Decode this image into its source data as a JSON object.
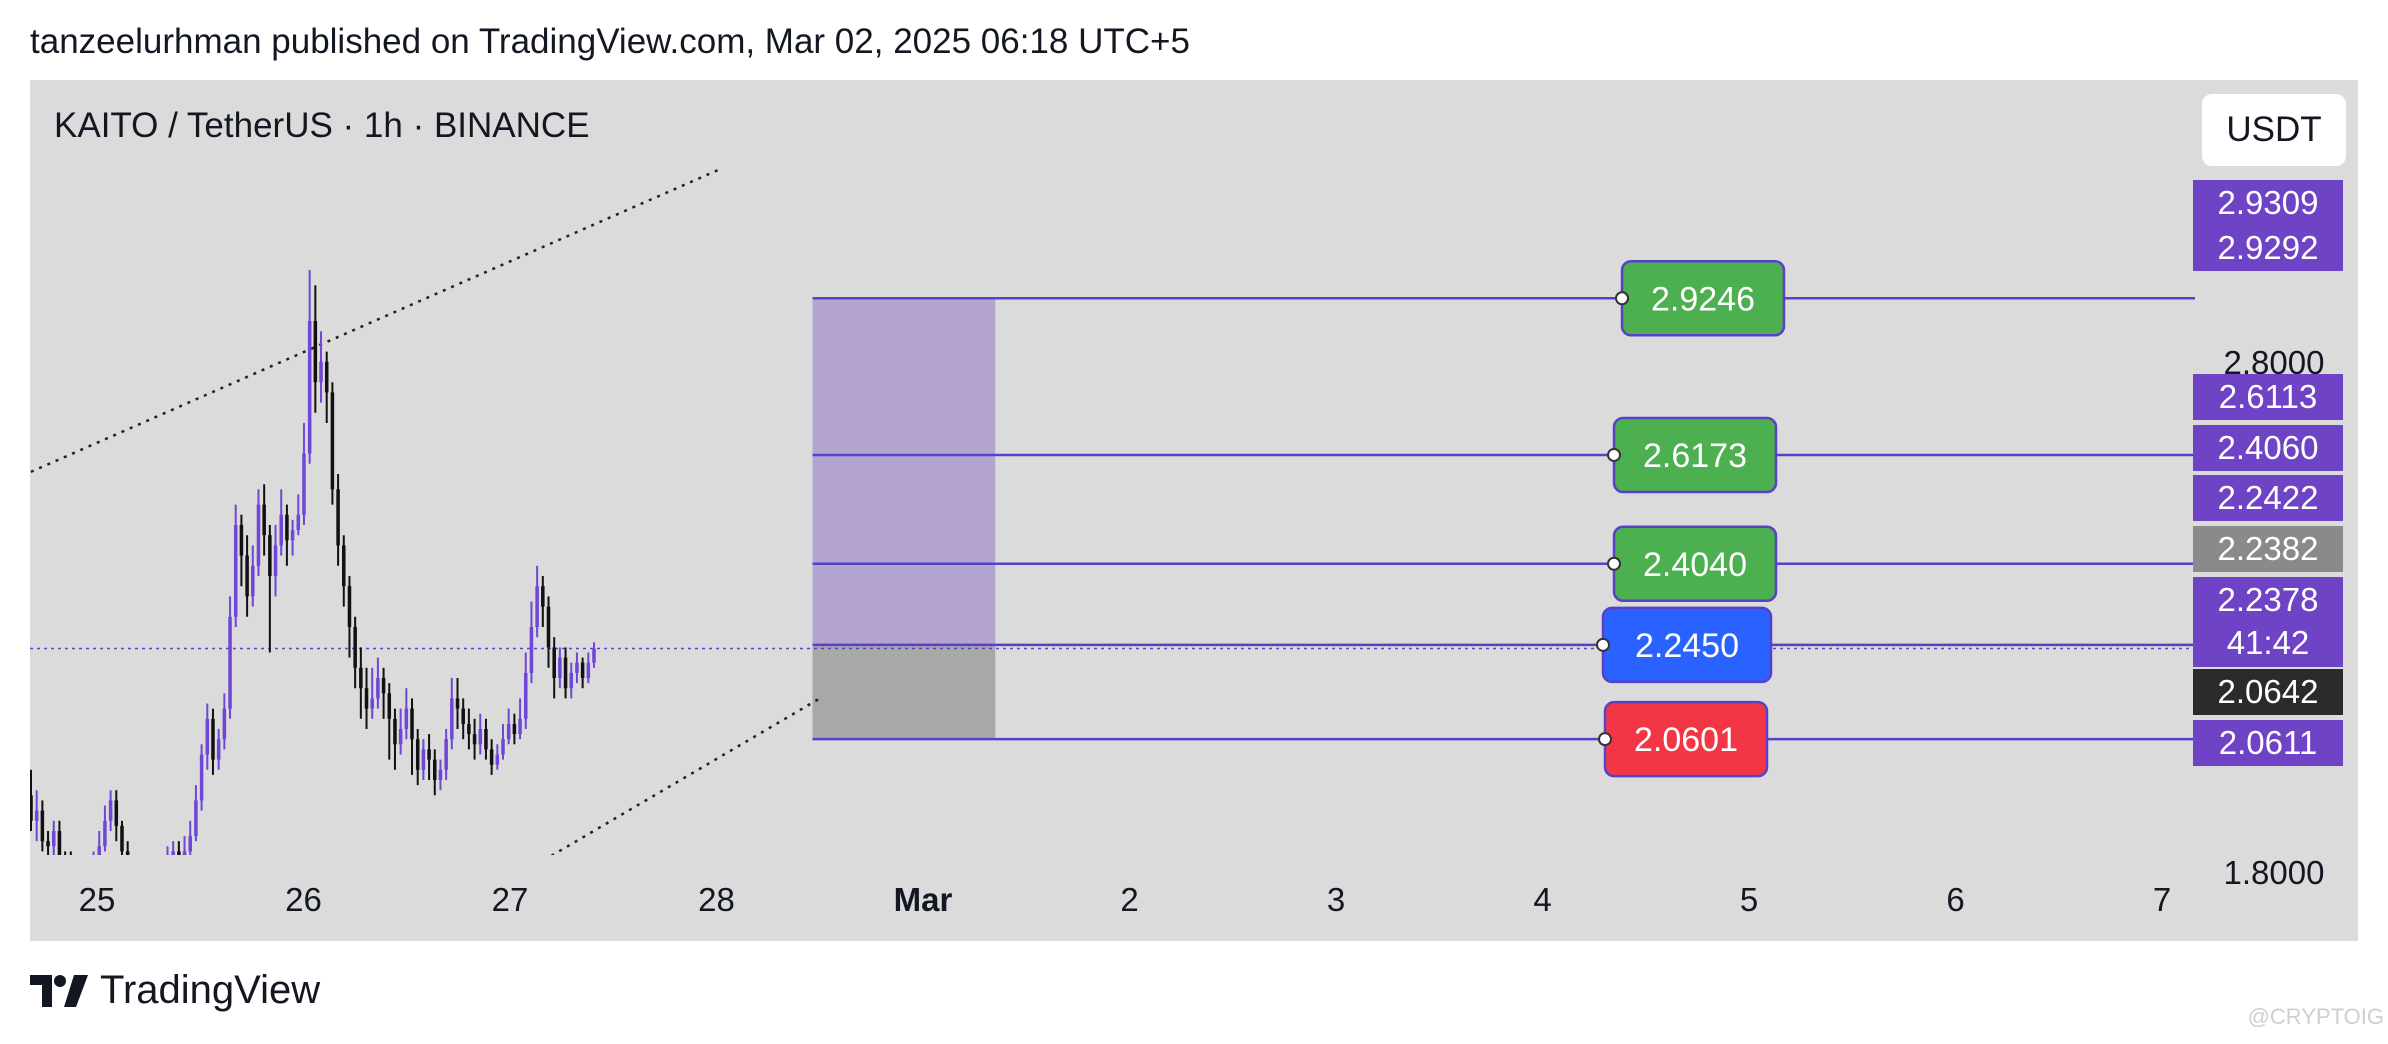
{
  "header": {
    "text": "tanzeelurhman published on TradingView.com, Mar 02, 2025 06:18 UTC+5"
  },
  "chart_header": {
    "symbol": "KAITO / TetherUS · 1h · BINANCE",
    "unit_button": "USDT"
  },
  "footer": {
    "brand": "TradingView",
    "watermark": "@CRYPTOIG"
  },
  "colors": {
    "panel": "#dbdbdb",
    "bull": "#7046d8",
    "bear": "#111111",
    "tp": "#4caf50",
    "entry": "#2962ff",
    "stop": "#f23645",
    "line": "#5940c8",
    "zone_profit": "#b3a4d0",
    "zone_loss": "#a8a8a8",
    "price_badge": "#6e43c6"
  },
  "chart_data": {
    "type": "candlestick",
    "x_ticks": [
      "25",
      "26",
      "27",
      "28",
      "Mar",
      "2",
      "3",
      "4",
      "5",
      "6",
      "7"
    ],
    "y_ticks": [
      "2.8000",
      "1.8000"
    ],
    "ylim": [
      1.73,
      3.18
    ],
    "candles": [
      [
        1.95,
        1.9,
        2.0,
        1.88
      ],
      [
        1.9,
        1.92,
        1.96,
        1.86
      ],
      [
        1.92,
        1.86,
        1.94,
        1.84
      ],
      [
        1.86,
        1.85,
        1.88,
        1.8
      ],
      [
        1.85,
        1.88,
        1.9,
        1.82
      ],
      [
        1.88,
        1.83,
        1.9,
        1.8
      ],
      [
        1.83,
        1.82,
        1.84,
        1.78
      ],
      [
        1.82,
        1.8,
        1.84,
        1.76
      ],
      [
        1.8,
        1.79,
        1.82,
        1.76
      ],
      [
        1.79,
        1.78,
        1.8,
        1.74
      ],
      [
        1.78,
        1.79,
        1.81,
        1.76
      ],
      [
        1.79,
        1.82,
        1.84,
        1.78
      ],
      [
        1.82,
        1.85,
        1.88,
        1.8
      ],
      [
        1.85,
        1.9,
        1.93,
        1.84
      ],
      [
        1.9,
        1.94,
        1.96,
        1.88
      ],
      [
        1.94,
        1.89,
        1.96,
        1.86
      ],
      [
        1.89,
        1.84,
        1.9,
        1.82
      ],
      [
        1.84,
        1.8,
        1.86,
        1.78
      ],
      [
        1.8,
        1.79,
        1.82,
        1.76
      ],
      [
        1.79,
        1.78,
        1.8,
        1.74
      ],
      [
        1.78,
        1.77,
        1.79,
        1.74
      ],
      [
        1.77,
        1.78,
        1.8,
        1.75
      ],
      [
        1.78,
        1.77,
        1.79,
        1.74
      ],
      [
        1.77,
        1.79,
        1.81,
        1.75
      ],
      [
        1.79,
        1.82,
        1.85,
        1.78
      ],
      [
        1.82,
        1.84,
        1.86,
        1.8
      ],
      [
        1.84,
        1.81,
        1.86,
        1.79
      ],
      [
        1.81,
        1.84,
        1.87,
        1.8
      ],
      [
        1.84,
        1.87,
        1.9,
        1.83
      ],
      [
        1.87,
        1.94,
        1.97,
        1.86
      ],
      [
        1.94,
        2.03,
        2.05,
        1.92
      ],
      [
        2.03,
        2.1,
        2.13,
        2.0
      ],
      [
        2.1,
        2.02,
        2.12,
        1.99
      ],
      [
        2.02,
        2.06,
        2.08,
        2.0
      ],
      [
        2.06,
        2.12,
        2.15,
        2.04
      ],
      [
        2.12,
        2.3,
        2.34,
        2.1
      ],
      [
        2.3,
        2.48,
        2.52,
        2.28
      ],
      [
        2.48,
        2.42,
        2.5,
        2.36
      ],
      [
        2.42,
        2.34,
        2.46,
        2.3
      ],
      [
        2.34,
        2.4,
        2.44,
        2.32
      ],
      [
        2.4,
        2.52,
        2.55,
        2.38
      ],
      [
        2.52,
        2.46,
        2.56,
        2.42
      ],
      [
        2.46,
        2.38,
        2.48,
        2.23
      ],
      [
        2.38,
        2.44,
        2.48,
        2.34
      ],
      [
        2.44,
        2.5,
        2.55,
        2.42
      ],
      [
        2.5,
        2.45,
        2.52,
        2.4
      ],
      [
        2.45,
        2.47,
        2.49,
        2.42
      ],
      [
        2.47,
        2.5,
        2.54,
        2.46
      ],
      [
        2.5,
        2.62,
        2.68,
        2.48
      ],
      [
        2.62,
        2.88,
        2.98,
        2.6
      ],
      [
        2.88,
        2.76,
        2.95,
        2.7
      ],
      [
        2.76,
        2.8,
        2.86,
        2.72
      ],
      [
        2.8,
        2.74,
        2.82,
        2.68
      ],
      [
        2.74,
        2.55,
        2.76,
        2.52
      ],
      [
        2.55,
        2.44,
        2.58,
        2.4
      ],
      [
        2.44,
        2.36,
        2.46,
        2.32
      ],
      [
        2.36,
        2.28,
        2.38,
        2.22
      ],
      [
        2.28,
        2.2,
        2.3,
        2.16
      ],
      [
        2.2,
        2.16,
        2.24,
        2.1
      ],
      [
        2.16,
        2.12,
        2.2,
        2.08
      ],
      [
        2.12,
        2.14,
        2.2,
        2.1
      ],
      [
        2.14,
        2.18,
        2.22,
        2.12
      ],
      [
        2.18,
        2.15,
        2.2,
        2.1
      ],
      [
        2.15,
        2.1,
        2.17,
        2.02
      ],
      [
        2.1,
        2.05,
        2.12,
        2.0
      ],
      [
        2.05,
        2.08,
        2.12,
        2.03
      ],
      [
        2.08,
        2.12,
        2.16,
        2.06
      ],
      [
        2.12,
        2.06,
        2.14,
        1.99
      ],
      [
        2.06,
        2.0,
        2.08,
        1.97
      ],
      [
        2.0,
        2.04,
        2.06,
        1.98
      ],
      [
        2.04,
        2.02,
        2.07,
        1.98
      ],
      [
        2.02,
        1.98,
        2.04,
        1.95
      ],
      [
        1.98,
        2.0,
        2.02,
        1.96
      ],
      [
        2.0,
        2.06,
        2.08,
        1.98
      ],
      [
        2.06,
        2.14,
        2.18,
        2.04
      ],
      [
        2.14,
        2.12,
        2.18,
        2.08
      ],
      [
        2.12,
        2.09,
        2.14,
        2.06
      ],
      [
        2.09,
        2.07,
        2.12,
        2.04
      ],
      [
        2.07,
        2.05,
        2.1,
        2.02
      ],
      [
        2.05,
        2.08,
        2.11,
        2.03
      ],
      [
        2.08,
        2.04,
        2.1,
        2.02
      ],
      [
        2.04,
        2.01,
        2.06,
        1.99
      ],
      [
        2.01,
        2.03,
        2.05,
        2.0
      ],
      [
        2.03,
        2.06,
        2.09,
        2.02
      ],
      [
        2.06,
        2.09,
        2.12,
        2.05
      ],
      [
        2.09,
        2.07,
        2.11,
        2.05
      ],
      [
        2.07,
        2.1,
        2.14,
        2.06
      ],
      [
        2.1,
        2.19,
        2.23,
        2.08
      ],
      [
        2.19,
        2.28,
        2.33,
        2.17
      ],
      [
        2.28,
        2.36,
        2.4,
        2.26
      ],
      [
        2.36,
        2.32,
        2.38,
        2.28
      ],
      [
        2.32,
        2.24,
        2.34,
        2.2
      ],
      [
        2.24,
        2.18,
        2.26,
        2.14
      ],
      [
        2.18,
        2.22,
        2.24,
        2.16
      ],
      [
        2.22,
        2.16,
        2.24,
        2.14
      ],
      [
        2.16,
        2.19,
        2.21,
        2.14
      ],
      [
        2.19,
        2.21,
        2.23,
        2.17
      ],
      [
        2.21,
        2.18,
        2.22,
        2.16
      ],
      [
        2.18,
        2.21,
        2.23,
        2.17
      ],
      [
        2.21,
        2.238,
        2.25,
        2.2
      ]
    ]
  },
  "trade_levels": [
    {
      "value": 2.9246,
      "label": "2.9246",
      "kind": "tp",
      "x_start": 3.465
    },
    {
      "value": 2.6173,
      "label": "2.6173",
      "kind": "tp",
      "x_start": 3.465
    },
    {
      "value": 2.404,
      "label": "2.4040",
      "kind": "tp",
      "x_start": 3.465
    },
    {
      "value": 2.245,
      "label": "2.2450",
      "kind": "entry",
      "x_start": 3.465
    },
    {
      "value": 2.0601,
      "label": "2.0601",
      "kind": "stop",
      "x_start": 3.465
    }
  ],
  "zones": [
    {
      "kind": "profit",
      "from": 2.245,
      "to": 2.9246,
      "x_from": 3.465,
      "x_to": 4.35
    },
    {
      "kind": "loss",
      "from": 2.0601,
      "to": 2.245,
      "x_from": 3.465,
      "x_to": 4.35
    }
  ],
  "trendlines": [
    {
      "name": "upper-channel-line",
      "from": [
        -0.4,
        2.57
      ],
      "to": [
        3.03,
        3.18
      ]
    },
    {
      "name": "lower-channel-line",
      "from": [
        1.9,
        1.76
      ],
      "to": [
        3.5,
        2.14
      ]
    }
  ],
  "current_price_line": {
    "value": 2.2378
  },
  "price_badges": [
    {
      "label": "2.9309",
      "value": 2.9309,
      "style": "purple"
    },
    {
      "label": "2.9292",
      "value": 2.9292,
      "style": "purple"
    },
    {
      "label": "2.6113",
      "value": 2.6113,
      "style": "purple"
    },
    {
      "label": "2.4060",
      "value": 2.406,
      "style": "purple"
    },
    {
      "label": "2.2422",
      "value": 2.2422,
      "style": "purple"
    },
    {
      "label": "2.2382",
      "value": 2.2382,
      "style": "grey"
    },
    {
      "label": "2.2378",
      "value": 2.2378,
      "style": "purple",
      "sub": "41:42"
    },
    {
      "label": "2.0642",
      "value": 2.0642,
      "style": "dark"
    },
    {
      "label": "2.0611",
      "value": 2.0611,
      "style": "purple"
    }
  ]
}
